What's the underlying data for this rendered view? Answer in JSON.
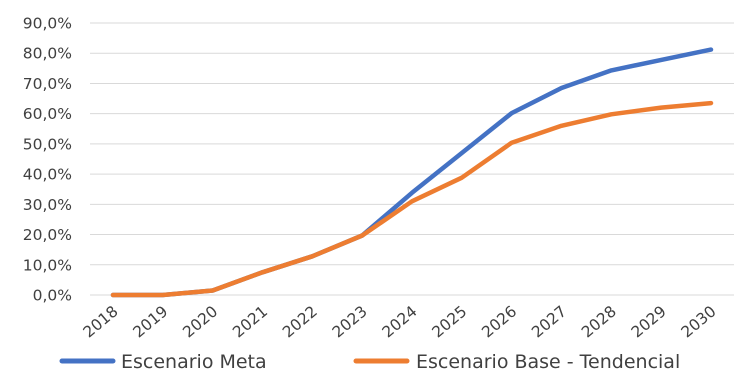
{
  "chart_data": {
    "type": "line",
    "categories": [
      "2018",
      "2019",
      "2020",
      "2021",
      "2022",
      "2023",
      "2024",
      "2025",
      "2026",
      "2027",
      "2028",
      "2029",
      "2030"
    ],
    "series": [
      {
        "name": "Escenario Meta",
        "color": "#4472C4",
        "values": [
          0.0,
          0.0,
          1.5,
          7.5,
          12.8,
          19.7,
          33.8,
          47.0,
          60.2,
          68.5,
          74.3,
          77.8,
          81.2
        ]
      },
      {
        "name": "Escenario Base - Tendencial",
        "color": "#ED7D31",
        "values": [
          0.0,
          0.0,
          1.5,
          7.5,
          12.8,
          19.7,
          31.0,
          38.8,
          50.4,
          56.0,
          59.8,
          62.0,
          63.5
        ]
      }
    ],
    "y_ticks": [
      "0,0%",
      "10,0%",
      "20,0%",
      "30,0%",
      "40,0%",
      "50,0%",
      "60,0%",
      "70,0%",
      "80,0%",
      "90,0%"
    ],
    "ylim": [
      0,
      90
    ],
    "grid": true,
    "legend_position": "bottom"
  }
}
